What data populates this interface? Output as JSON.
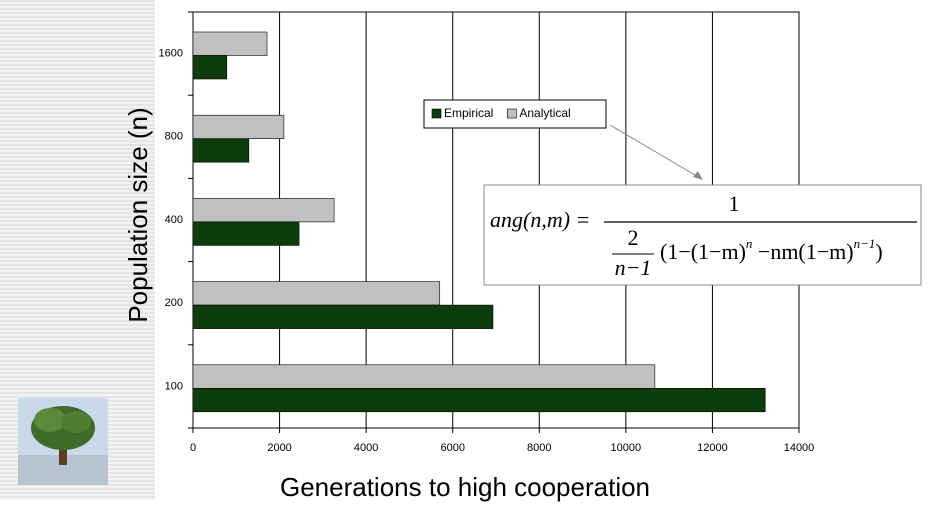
{
  "chart_data": {
    "type": "hbar",
    "xlabel": "Generations to high cooperation",
    "ylabel": "Population size (n)",
    "categories": [
      "1600",
      "800",
      "400",
      "200",
      "100"
    ],
    "series": [
      {
        "name": "Empirical",
        "color": "#0d3d0d",
        "values": [
          780,
          1290,
          2450,
          6930,
          13220
        ]
      },
      {
        "name": "Analytical",
        "color": "#c0c0c0",
        "values": [
          1710,
          2100,
          3260,
          5700,
          10670
        ]
      }
    ],
    "xlim": [
      0,
      14000
    ],
    "xticks": [
      0,
      2000,
      4000,
      6000,
      8000,
      10000,
      12000,
      14000
    ],
    "grid": true,
    "formula": {
      "lhs": "ang(n,m) =",
      "numerator": "1",
      "coef_num": "2",
      "coef_den": "n−1",
      "body1": "(1−(1−m)",
      "exp1": "n",
      "body2": " −nm(1−m)",
      "exp2": "n−1",
      "body3": ")"
    }
  }
}
